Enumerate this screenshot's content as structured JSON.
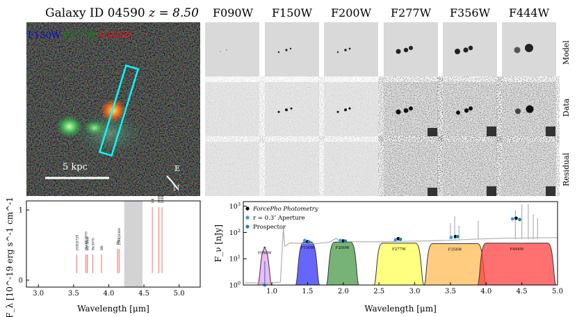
{
  "rgb_panel": {
    "title": "Galaxy ID 04590 z = 8.50",
    "title_prefix": "Galaxy ID 04590",
    "redshift": "z = 8.50",
    "legend": [
      {
        "label": "F150W",
        "color": "#0a0ad0"
      },
      {
        "label": "F277W",
        "color": "#0b8a0b"
      },
      {
        "label": "F444W",
        "color": "#e01010"
      }
    ],
    "scalebar": "5 kpc",
    "compass": {
      "east": "E",
      "north": "N"
    }
  },
  "cutouts": {
    "filters": [
      "F090W",
      "F150W",
      "F200W",
      "F277W",
      "F356W",
      "F444W"
    ],
    "rows": [
      "Model",
      "Data",
      "Residual"
    ]
  },
  "spectrum_panel": {
    "xlabel": "Wavelength [μm]",
    "ylabel": "F_λ [10^-19 erg s^-1 cm^-1 Å^-1]",
    "xticks": [
      "3.0",
      "3.5",
      "4.0",
      "4.5",
      "5.0"
    ],
    "yticks": [
      "0",
      "1"
    ],
    "lines": [
      {
        "label": "[OII]3729",
        "wave": 3.544
      },
      {
        "label": "[NeIII]3870",
        "wave": 3.676
      },
      {
        "label": "H8 3889",
        "wave": 3.695
      },
      {
        "label": "Hε3970",
        "wave": 3.772
      },
      {
        "label": "Hδ",
        "wave": 3.897
      },
      {
        "label": "Hγ",
        "wave": 4.125
      },
      {
        "label": "[OIII]4364",
        "wave": 4.146
      },
      {
        "label": "Hβ",
        "wave": 4.619
      },
      {
        "label": "[OIII]4960",
        "wave": 4.712
      },
      {
        "label": "[OIII]5007",
        "wave": 4.757
      }
    ],
    "gap": [
      4.22,
      4.48
    ]
  },
  "chart_data": {
    "type": "scatter",
    "xlabel": "Wavelength [μm]",
    "ylabel": "F_ν [nJy]",
    "xlim": [
      0.6,
      5.0
    ],
    "ylim": [
      1,
      1500
    ],
    "yscale": "log",
    "xticks": [
      "1.0",
      "1.5",
      "2.0",
      "2.5",
      "3.0",
      "3.5",
      "4.0",
      "4.5",
      "5.0"
    ],
    "legend_position": "top-left",
    "legend": [
      {
        "label": "ForcePho Photometry",
        "color": "#000000"
      },
      {
        "label": "r = 0.3″ Aperture",
        "color": "#3399ff"
      },
      {
        "label": "Prospector",
        "color": "#1a8c80"
      }
    ],
    "series": [
      {
        "name": "ForcePho Photometry",
        "x": [
          1.5,
          2.0,
          2.77,
          3.57,
          4.42
        ],
        "y": [
          45,
          48,
          58,
          70,
          350
        ]
      },
      {
        "name": "r = 0.3″ Aperture",
        "x": [
          0.9,
          1.46,
          1.96,
          2.73,
          3.51,
          4.37
        ],
        "y": [
          1.0,
          50,
          50,
          52,
          65,
          330
        ]
      },
      {
        "name": "Prospector",
        "x": [
          1.52,
          2.03,
          2.8,
          3.6,
          4.47
        ],
        "y": [
          44,
          47,
          55,
          70,
          310
        ]
      }
    ],
    "filters": [
      {
        "name": "F090W",
        "lo": 0.8,
        "hi": 1.0,
        "peak": 35,
        "color": "#f2a0f2"
      },
      {
        "name": "F150W",
        "lo": 1.33,
        "hi": 1.67,
        "peak": 55,
        "color": "#3333ff"
      },
      {
        "name": "F200W",
        "lo": 1.76,
        "hi": 2.22,
        "peak": 55,
        "color": "#4a9a4a"
      },
      {
        "name": "F277W",
        "lo": 2.43,
        "hi": 3.13,
        "peak": 50,
        "color": "#ffff55"
      },
      {
        "name": "F356W",
        "lo": 3.13,
        "hi": 4.0,
        "peak": 48,
        "color": "#ffbb55"
      },
      {
        "name": "F444W",
        "lo": 3.88,
        "hi": 4.98,
        "peak": 50,
        "color": "#ff4040"
      }
    ]
  }
}
